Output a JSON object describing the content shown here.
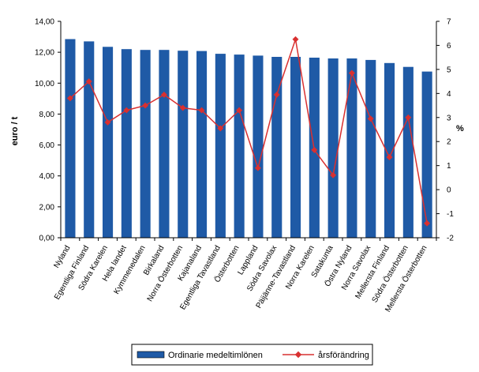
{
  "chart_data": {
    "type": "bar",
    "categories": [
      "Nyland",
      "Egentliga Finland",
      "Södra Karelen",
      "Hela landet",
      "Kymmenedalen",
      "Birkaland",
      "Norra Österbotten",
      "Kajanaland",
      "Egentliga Tavastland",
      "Österbotten",
      "Lappland",
      "Södra Savolax",
      "Päijänne-Tavastland",
      "Norra Karelen",
      "Satakunta",
      "Östra Nyland",
      "Norra Savolax",
      "Mellersta Finland",
      "Södra Österbotten",
      "Mellersta Österbotten"
    ],
    "series": [
      {
        "name": "Ordinarie medeltimlönen",
        "type": "bar",
        "axis": "left",
        "color": "#1f5aa6",
        "values": [
          12.85,
          12.7,
          12.35,
          12.2,
          12.15,
          12.15,
          12.1,
          12.08,
          11.9,
          11.85,
          11.78,
          11.7,
          11.7,
          11.65,
          11.6,
          11.6,
          11.5,
          11.3,
          11.05,
          10.75
        ]
      },
      {
        "name": "årsförändring",
        "type": "line",
        "axis": "right",
        "color": "#d93030",
        "values": [
          3.8,
          4.5,
          2.8,
          3.3,
          3.5,
          3.95,
          3.4,
          3.3,
          2.55,
          3.3,
          0.9,
          3.95,
          6.25,
          1.65,
          0.6,
          4.85,
          2.95,
          1.35,
          3.0,
          -1.4
        ]
      }
    ],
    "ylabel": "euro / t",
    "y2label": "%",
    "ylim": [
      0,
      14
    ],
    "y2lim": [
      -2,
      7
    ],
    "yticks": [
      "0,00",
      "2,00",
      "4,00",
      "6,00",
      "8,00",
      "10,00",
      "12,00",
      "14,00"
    ],
    "y2ticks": [
      "-2",
      "-1",
      "0",
      "1",
      "2",
      "3",
      "4",
      "5",
      "6",
      "7"
    ],
    "grid": false,
    "legend_position": "bottom"
  }
}
